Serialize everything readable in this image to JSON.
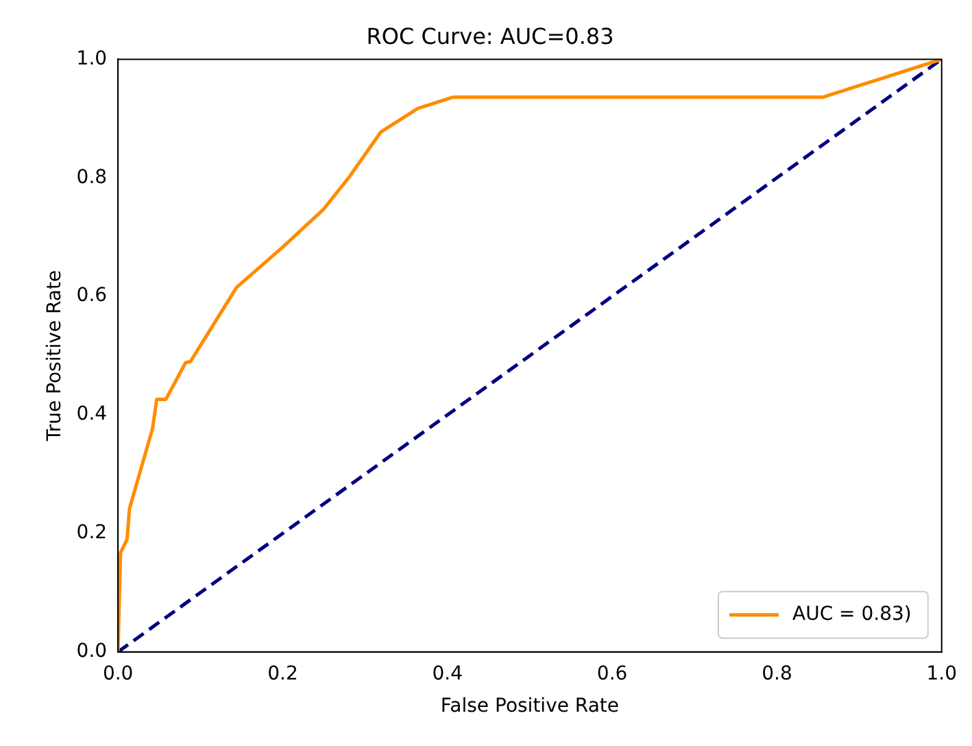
{
  "chart_data": {
    "type": "line",
    "title": "ROC Curve: AUC=0.83",
    "xlabel": "False Positive Rate",
    "ylabel": "True Positive Rate",
    "series": [
      {
        "name": "AUC = 0.83)",
        "color": "#ff8c00",
        "line_style": "solid",
        "x": [
          0,
          0.003,
          0.011,
          0.014,
          0.042,
          0.047,
          0.058,
          0.082,
          0.088,
          0.144,
          0.2,
          0.249,
          0.28,
          0.319,
          0.364,
          0.407,
          0.856,
          1
        ],
        "values": [
          0,
          0.167,
          0.19,
          0.242,
          0.377,
          0.426,
          0.426,
          0.488,
          0.49,
          0.615,
          0.683,
          0.746,
          0.8,
          0.877,
          0.917,
          0.936,
          0.936,
          1
        ]
      },
      {
        "color": "#000080",
        "line_style": "dashed",
        "x": [
          0,
          1
        ],
        "values": [
          0,
          1
        ]
      }
    ],
    "xlim": [
      0,
      1
    ],
    "ylim": [
      0,
      1
    ],
    "xticks": [
      {
        "value": 0,
        "label": "0.0"
      },
      0.2,
      0.4,
      0.6,
      0.8,
      {
        "value": 1,
        "label": "1.0"
      }
    ],
    "yticks": [
      {
        "value": 0,
        "label": "0.0"
      },
      0.2,
      0.4,
      0.6,
      0.8,
      {
        "value": 1,
        "label": "1.0"
      }
    ],
    "grid": false,
    "legend": "bottom right",
    "marker": "none"
  }
}
